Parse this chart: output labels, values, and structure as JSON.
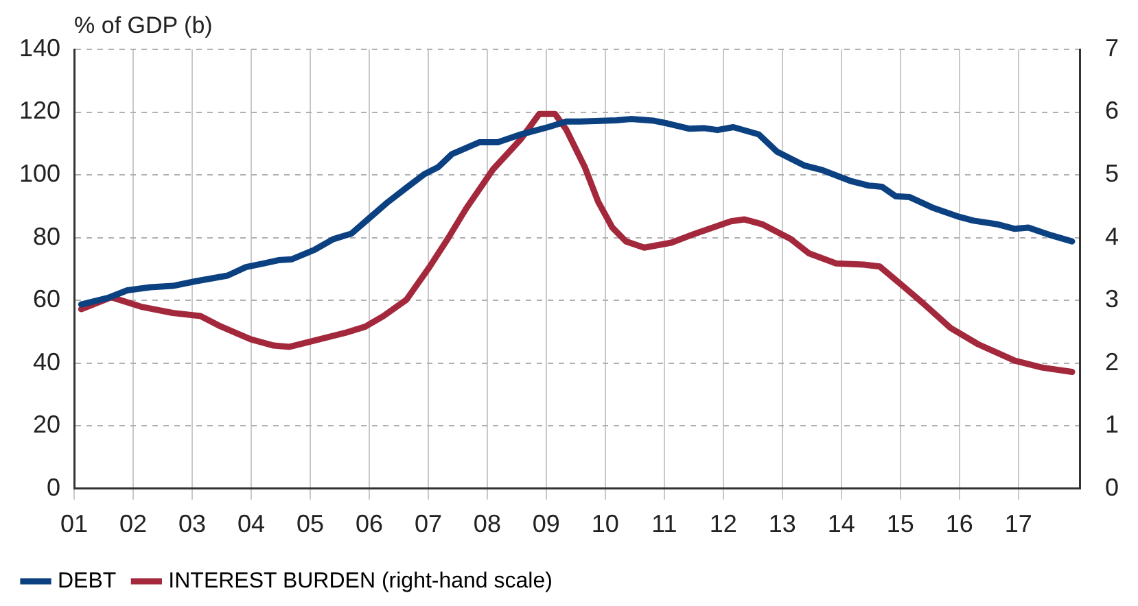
{
  "chart_data": {
    "type": "line",
    "ylabel": "% of GDP (b)",
    "xlim": [
      2001,
      2018.05
    ],
    "xticks": [
      {
        "value": 2001,
        "label": "01"
      },
      {
        "value": 2002,
        "label": "02"
      },
      {
        "value": 2003,
        "label": "03"
      },
      {
        "value": 2004,
        "label": "04"
      },
      {
        "value": 2005,
        "label": "05"
      },
      {
        "value": 2006,
        "label": "06"
      },
      {
        "value": 2007,
        "label": "07"
      },
      {
        "value": 2008,
        "label": "08"
      },
      {
        "value": 2009,
        "label": "09"
      },
      {
        "value": 2010,
        "label": "10"
      },
      {
        "value": 2011,
        "label": "11"
      },
      {
        "value": 2012,
        "label": "12"
      },
      {
        "value": 2013,
        "label": "13"
      },
      {
        "value": 2014,
        "label": "14"
      },
      {
        "value": 2015,
        "label": "15"
      },
      {
        "value": 2016,
        "label": "16"
      },
      {
        "value": 2017,
        "label": "17"
      }
    ],
    "ylim": [
      0,
      140
    ],
    "yticks": [
      0,
      20,
      40,
      60,
      80,
      100,
      120,
      140
    ],
    "y2lim": [
      0,
      7
    ],
    "y2ticks": [
      0,
      1,
      2,
      3,
      4,
      5,
      6,
      7
    ],
    "grid": true,
    "legend": "bottom left",
    "marker": "none",
    "line_style": "solid",
    "series": [
      {
        "name": "DEBT",
        "color": "#0b4081",
        "x": [
          2001.12,
          2001.59,
          2001.9,
          2002.29,
          2002.67,
          2003.06,
          2003.6,
          2003.91,
          2004.22,
          2004.46,
          2004.69,
          2005.08,
          2005.39,
          2005.7,
          2006.0,
          2006.32,
          2006.63,
          2006.94,
          2007.17,
          2007.4,
          2007.87,
          2008.18,
          2008.57,
          2009.03,
          2009.34,
          2009.57,
          2010.19,
          2010.43,
          2010.81,
          2011.05,
          2011.43,
          2011.67,
          2011.9,
          2012.17,
          2012.6,
          2012.91,
          2013.37,
          2013.68,
          2014.15,
          2014.46,
          2014.69,
          2014.92,
          2015.16,
          2015.54,
          2016.0,
          2016.24,
          2016.63,
          2016.94,
          2017.17,
          2017.56,
          2017.91
        ],
        "values": [
          58.7,
          60.9,
          63.2,
          64.2,
          64.6,
          66.1,
          67.9,
          70.6,
          71.8,
          72.8,
          73.1,
          76.2,
          79.5,
          81.3,
          86.2,
          91.4,
          95.9,
          100.3,
          102.5,
          106.6,
          110.4,
          110.4,
          112.9,
          115.2,
          117.0,
          117.0,
          117.4,
          117.8,
          117.3,
          116.4,
          114.7,
          114.9,
          114.3,
          115.2,
          112.9,
          107.4,
          103.0,
          101.5,
          98.1,
          96.6,
          96.2,
          93.2,
          92.9,
          89.6,
          86.6,
          85.4,
          84.3,
          82.8,
          83.2,
          80.7,
          78.8
        ]
      },
      {
        "name": "INTEREST BURDEN (right-hand scale)",
        "color": "#a3283c",
        "axis": "y2",
        "x": [
          2001.12,
          2001.63,
          2002.13,
          2002.67,
          2003.14,
          2003.45,
          2003.99,
          2004.38,
          2004.65,
          2005.16,
          2005.62,
          2005.93,
          2006.24,
          2006.63,
          2007.02,
          2007.33,
          2007.64,
          2008.1,
          2008.57,
          2008.88,
          2009.15,
          2009.34,
          2009.65,
          2009.88,
          2010.12,
          2010.35,
          2010.66,
          2011.12,
          2011.51,
          2011.82,
          2012.13,
          2012.36,
          2012.67,
          2013.14,
          2013.45,
          2013.91,
          2014.38,
          2014.65,
          2015.08,
          2015.39,
          2015.85,
          2016.32,
          2016.94,
          2017.4,
          2017.91
        ],
        "values": [
          2.86,
          3.05,
          2.9,
          2.8,
          2.75,
          2.6,
          2.38,
          2.28,
          2.26,
          2.38,
          2.49,
          2.58,
          2.75,
          3.01,
          3.53,
          3.98,
          4.46,
          5.09,
          5.57,
          5.97,
          5.97,
          5.72,
          5.13,
          4.57,
          4.16,
          3.94,
          3.84,
          3.92,
          4.06,
          4.16,
          4.26,
          4.29,
          4.21,
          3.98,
          3.75,
          3.59,
          3.57,
          3.54,
          3.2,
          2.95,
          2.56,
          2.3,
          2.04,
          1.93,
          1.86
        ]
      }
    ]
  }
}
